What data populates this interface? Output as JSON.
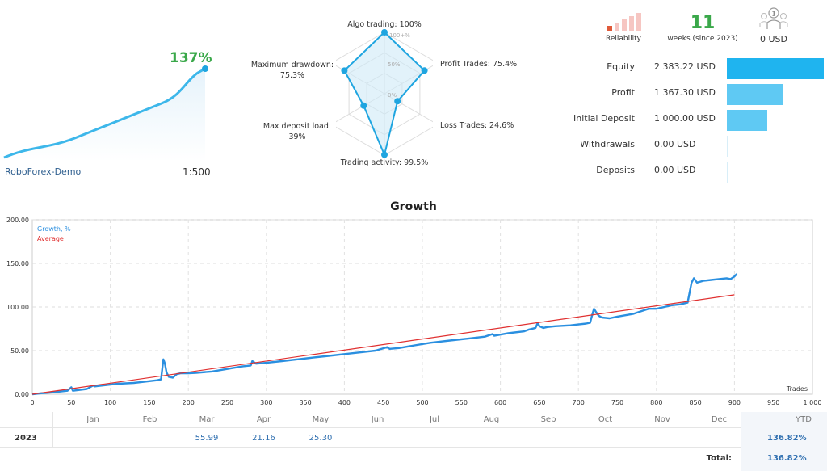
{
  "summary": {
    "growth_pct": "137%",
    "broker": "RoboForex-Demo",
    "leverage": "1:500",
    "reliability_label": "Reliability",
    "weeks_value": "11",
    "weeks_label": "weeks (since 2023)",
    "subscribers_value": "0 USD"
  },
  "radar": {
    "algo_trading": "Algo trading: 100%",
    "profit_trades": "Profit Trades: 75.4%",
    "loss_trades": "Loss Trades: 24.6%",
    "trading_activity": "Trading activity: 99.5%",
    "max_deposit_load_label": "Max deposit load:",
    "max_deposit_load_value": "39%",
    "max_drawdown_label": "Maximum drawdown:",
    "max_drawdown_value": "75.3%",
    "ring_labels": [
      "100+%",
      "50%",
      "0%"
    ],
    "axes_values": [
      1.0,
      0.754,
      0.246,
      0.995,
      0.39,
      0.753
    ]
  },
  "stats": [
    {
      "label": "Equity",
      "value": "2 383.22 USD",
      "amount": 2383.22
    },
    {
      "label": "Profit",
      "value": "1 367.30 USD",
      "amount": 1367.3
    },
    {
      "label": "Initial Deposit",
      "value": "1 000.00 USD",
      "amount": 1000.0
    },
    {
      "label": "Withdrawals",
      "value": "0.00 USD",
      "amount": 0
    },
    {
      "label": "Deposits",
      "value": "0.00 USD",
      "amount": 0
    }
  ],
  "colors": {
    "growth": "#2a8fe0",
    "average": "#e03030",
    "equity_bar": "#1fb4ef",
    "other_bar": "#5fc9f3",
    "green": "#3aa84a"
  },
  "chart_data": {
    "type": "line",
    "title": "Growth",
    "xlabel": "Trades",
    "ylabel": "",
    "xlim": [
      0,
      1000
    ],
    "ylim": [
      0,
      200
    ],
    "x_ticks": [
      0,
      50,
      100,
      150,
      200,
      250,
      300,
      350,
      400,
      450,
      500,
      550,
      600,
      650,
      700,
      750,
      800,
      850,
      900,
      950,
      1000
    ],
    "x_tick_labels": [
      "0",
      "50",
      "100",
      "150",
      "200",
      "250",
      "300",
      "350",
      "400",
      "450",
      "500",
      "550",
      "600",
      "650",
      "700",
      "750",
      "800",
      "850",
      "900",
      "950",
      "1 000"
    ],
    "y_ticks": [
      0,
      50,
      100,
      150,
      200
    ],
    "y_tick_labels": [
      "0.00",
      "50.00",
      "100.00",
      "150.00",
      "200.00"
    ],
    "grid": true,
    "legend_placement": "top-left",
    "series": [
      {
        "name": "Growth, %",
        "points": [
          [
            0,
            0
          ],
          [
            10,
            1
          ],
          [
            25,
            2
          ],
          [
            45,
            4
          ],
          [
            50,
            8
          ],
          [
            52,
            4
          ],
          [
            70,
            6
          ],
          [
            78,
            10
          ],
          [
            80,
            9
          ],
          [
            90,
            10
          ],
          [
            100,
            11
          ],
          [
            110,
            12
          ],
          [
            120,
            12.5
          ],
          [
            130,
            13
          ],
          [
            140,
            14
          ],
          [
            150,
            15
          ],
          [
            160,
            16
          ],
          [
            165,
            17
          ],
          [
            168,
            40
          ],
          [
            170,
            35
          ],
          [
            172,
            25
          ],
          [
            175,
            20
          ],
          [
            180,
            19
          ],
          [
            185,
            23
          ],
          [
            190,
            24
          ],
          [
            200,
            24
          ],
          [
            210,
            24.5
          ],
          [
            230,
            26
          ],
          [
            250,
            29
          ],
          [
            270,
            32
          ],
          [
            280,
            33
          ],
          [
            282,
            38
          ],
          [
            287,
            35
          ],
          [
            300,
            36
          ],
          [
            320,
            38
          ],
          [
            340,
            40
          ],
          [
            360,
            42
          ],
          [
            380,
            44
          ],
          [
            400,
            46
          ],
          [
            420,
            48
          ],
          [
            440,
            50
          ],
          [
            455,
            54
          ],
          [
            458,
            52
          ],
          [
            470,
            53
          ],
          [
            490,
            56
          ],
          [
            510,
            59
          ],
          [
            520,
            60
          ],
          [
            540,
            62
          ],
          [
            560,
            64
          ],
          [
            580,
            66
          ],
          [
            590,
            69
          ],
          [
            592,
            67
          ],
          [
            610,
            70
          ],
          [
            630,
            72
          ],
          [
            636,
            74
          ],
          [
            645,
            76
          ],
          [
            648,
            82
          ],
          [
            650,
            78
          ],
          [
            655,
            76
          ],
          [
            660,
            77
          ],
          [
            670,
            78
          ],
          [
            690,
            79
          ],
          [
            700,
            80
          ],
          [
            710,
            81
          ],
          [
            715,
            82
          ],
          [
            718,
            92
          ],
          [
            720,
            98
          ],
          [
            722,
            95
          ],
          [
            726,
            90
          ],
          [
            730,
            88
          ],
          [
            740,
            87
          ],
          [
            750,
            89
          ],
          [
            770,
            92
          ],
          [
            780,
            95
          ],
          [
            790,
            98
          ],
          [
            800,
            98
          ],
          [
            810,
            100
          ],
          [
            820,
            102
          ],
          [
            830,
            103
          ],
          [
            840,
            105
          ],
          [
            845,
            128
          ],
          [
            848,
            133
          ],
          [
            852,
            128
          ],
          [
            860,
            130
          ],
          [
            870,
            131
          ],
          [
            880,
            132
          ],
          [
            890,
            133
          ],
          [
            895,
            132
          ],
          [
            900,
            135
          ],
          [
            903,
            138
          ]
        ]
      },
      {
        "name": "Average",
        "points": [
          [
            0,
            0
          ],
          [
            900,
            114
          ]
        ]
      }
    ]
  },
  "monthly": {
    "months": [
      "Jan",
      "Feb",
      "Mar",
      "Apr",
      "May",
      "Jun",
      "Jul",
      "Aug",
      "Sep",
      "Oct",
      "Nov",
      "Dec"
    ],
    "ytd_label": "YTD",
    "year": "2023",
    "values": [
      "",
      "",
      "55.99",
      "21.16",
      "25.30",
      "",
      "",
      "",
      "",
      "",
      "",
      ""
    ],
    "ytd_value": "136.82%",
    "total_label": "Total:",
    "total_value": "136.82%"
  }
}
